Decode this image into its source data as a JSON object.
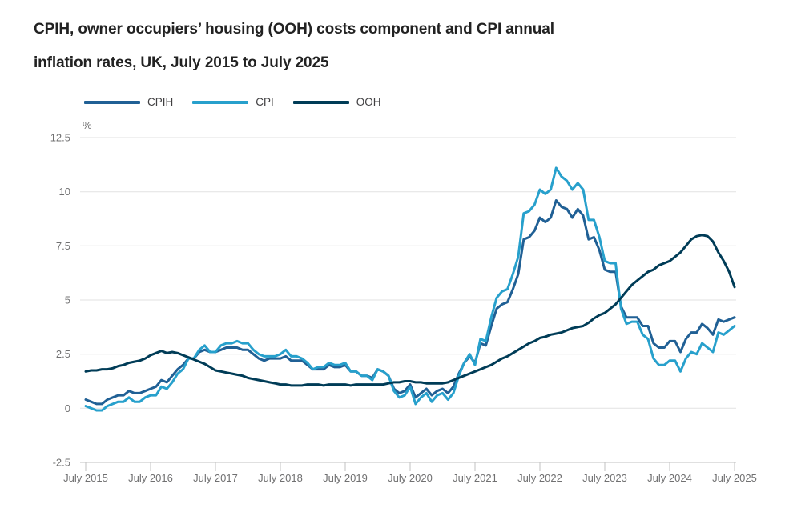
{
  "title": {
    "line1": "CPIH, owner occupiers’ housing (OOH) costs component and CPI annual",
    "line2": "inflation rates, UK, July 2015 to July 2025"
  },
  "styles": {
    "background": "#ffffff",
    "title_color": "#222222",
    "grid_color": "#e2e2e2",
    "axis_color": "#c2c2c2",
    "tick_label_color": "#707071",
    "legend_label_color": "#414042"
  },
  "chart_data": {
    "type": "line",
    "title": "CPIH, owner occupiers’ housing (OOH) costs component and CPI annual inflation rates, UK, July 2015 to July 2025",
    "xlabel": "",
    "ylabel": "%",
    "ylim": [
      -2.5,
      12.5
    ],
    "grid": true,
    "legend_position": "top",
    "x_frequency": "monthly",
    "x_range": [
      "July 2015",
      "July 2025"
    ],
    "x_tick_labels": [
      "July 2015",
      "July 2016",
      "July 2017",
      "July 2018",
      "July 2019",
      "July 2020",
      "July 2021",
      "July 2022",
      "July 2023",
      "July 2024",
      "July 2025"
    ],
    "x_ticks_every_n_points": 12,
    "ytick_values": [
      12.5,
      10,
      7.5,
      5,
      2.5,
      0,
      -2.5
    ],
    "ytick_labels": [
      "12.5",
      "10",
      "7.5",
      "5",
      "2.5",
      "0",
      "-2.5"
    ],
    "series": [
      {
        "name": "CPIH",
        "color": "#206095",
        "values": [
          0.4,
          0.3,
          0.2,
          0.2,
          0.4,
          0.5,
          0.6,
          0.6,
          0.8,
          0.7,
          0.7,
          0.8,
          0.9,
          1.0,
          1.3,
          1.2,
          1.5,
          1.8,
          2.0,
          2.3,
          2.3,
          2.6,
          2.7,
          2.6,
          2.6,
          2.7,
          2.8,
          2.8,
          2.8,
          2.7,
          2.7,
          2.5,
          2.3,
          2.2,
          2.3,
          2.3,
          2.3,
          2.4,
          2.2,
          2.2,
          2.2,
          2.0,
          1.8,
          1.8,
          1.8,
          2.0,
          1.9,
          1.9,
          2.0,
          1.7,
          1.7,
          1.5,
          1.5,
          1.4,
          1.8,
          1.7,
          1.5,
          0.9,
          0.7,
          0.8,
          1.1,
          0.5,
          0.7,
          0.9,
          0.6,
          0.8,
          0.9,
          0.7,
          1.0,
          1.6,
          2.1,
          2.4,
          2.1,
          3.0,
          2.9,
          3.8,
          4.6,
          4.8,
          4.9,
          5.5,
          6.2,
          7.8,
          7.9,
          8.2,
          8.8,
          8.6,
          8.8,
          9.6,
          9.3,
          9.2,
          8.8,
          9.2,
          8.9,
          7.8,
          7.9,
          7.3,
          6.4,
          6.3,
          6.3,
          4.7,
          4.2,
          4.2,
          4.2,
          3.8,
          3.8,
          3.0,
          2.8,
          2.8,
          3.1,
          3.1,
          2.6,
          3.2,
          3.5,
          3.5,
          3.9,
          3.7,
          3.4,
          4.1,
          4.0,
          4.1,
          4.2
        ]
      },
      {
        "name": "CPI",
        "color": "#27A0CC",
        "values": [
          0.1,
          0.0,
          -0.1,
          -0.1,
          0.1,
          0.2,
          0.3,
          0.3,
          0.5,
          0.3,
          0.3,
          0.5,
          0.6,
          0.6,
          1.0,
          0.9,
          1.2,
          1.6,
          1.8,
          2.3,
          2.3,
          2.7,
          2.9,
          2.6,
          2.6,
          2.9,
          3.0,
          3.0,
          3.1,
          3.0,
          3.0,
          2.7,
          2.5,
          2.4,
          2.4,
          2.4,
          2.5,
          2.7,
          2.4,
          2.4,
          2.3,
          2.1,
          1.8,
          1.9,
          1.9,
          2.1,
          2.0,
          2.0,
          2.1,
          1.7,
          1.7,
          1.5,
          1.5,
          1.3,
          1.8,
          1.7,
          1.5,
          0.8,
          0.5,
          0.6,
          1.0,
          0.2,
          0.5,
          0.7,
          0.3,
          0.6,
          0.7,
          0.4,
          0.7,
          1.5,
          2.1,
          2.5,
          2.0,
          3.2,
          3.1,
          4.2,
          5.1,
          5.4,
          5.5,
          6.2,
          7.0,
          9.0,
          9.1,
          9.4,
          10.1,
          9.9,
          10.1,
          11.1,
          10.7,
          10.5,
          10.1,
          10.4,
          10.1,
          8.7,
          8.7,
          7.9,
          6.8,
          6.7,
          6.7,
          4.6,
          3.9,
          4.0,
          4.0,
          3.4,
          3.2,
          2.3,
          2.0,
          2.0,
          2.2,
          2.2,
          1.7,
          2.3,
          2.6,
          2.5,
          3.0,
          2.8,
          2.6,
          3.5,
          3.4,
          3.6,
          3.8
        ]
      },
      {
        "name": "OOH",
        "color": "#003C57",
        "values": [
          1.7,
          1.75,
          1.75,
          1.8,
          1.8,
          1.85,
          1.95,
          2.0,
          2.1,
          2.15,
          2.2,
          2.3,
          2.45,
          2.55,
          2.65,
          2.55,
          2.6,
          2.55,
          2.45,
          2.35,
          2.25,
          2.15,
          2.05,
          1.9,
          1.75,
          1.7,
          1.65,
          1.6,
          1.55,
          1.5,
          1.4,
          1.35,
          1.3,
          1.25,
          1.2,
          1.15,
          1.1,
          1.1,
          1.05,
          1.05,
          1.05,
          1.1,
          1.1,
          1.1,
          1.05,
          1.1,
          1.1,
          1.1,
          1.1,
          1.05,
          1.1,
          1.1,
          1.1,
          1.1,
          1.1,
          1.1,
          1.15,
          1.2,
          1.2,
          1.25,
          1.25,
          1.2,
          1.2,
          1.15,
          1.15,
          1.15,
          1.15,
          1.2,
          1.3,
          1.4,
          1.5,
          1.6,
          1.7,
          1.8,
          1.9,
          2.0,
          2.15,
          2.3,
          2.4,
          2.55,
          2.7,
          2.85,
          3.0,
          3.1,
          3.25,
          3.3,
          3.4,
          3.45,
          3.5,
          3.6,
          3.7,
          3.75,
          3.8,
          3.95,
          4.15,
          4.3,
          4.4,
          4.6,
          4.8,
          5.1,
          5.4,
          5.7,
          5.9,
          6.1,
          6.3,
          6.4,
          6.6,
          6.7,
          6.8,
          7.0,
          7.2,
          7.5,
          7.8,
          7.95,
          8.0,
          7.95,
          7.7,
          7.2,
          6.8,
          6.3,
          5.6
        ]
      }
    ]
  }
}
